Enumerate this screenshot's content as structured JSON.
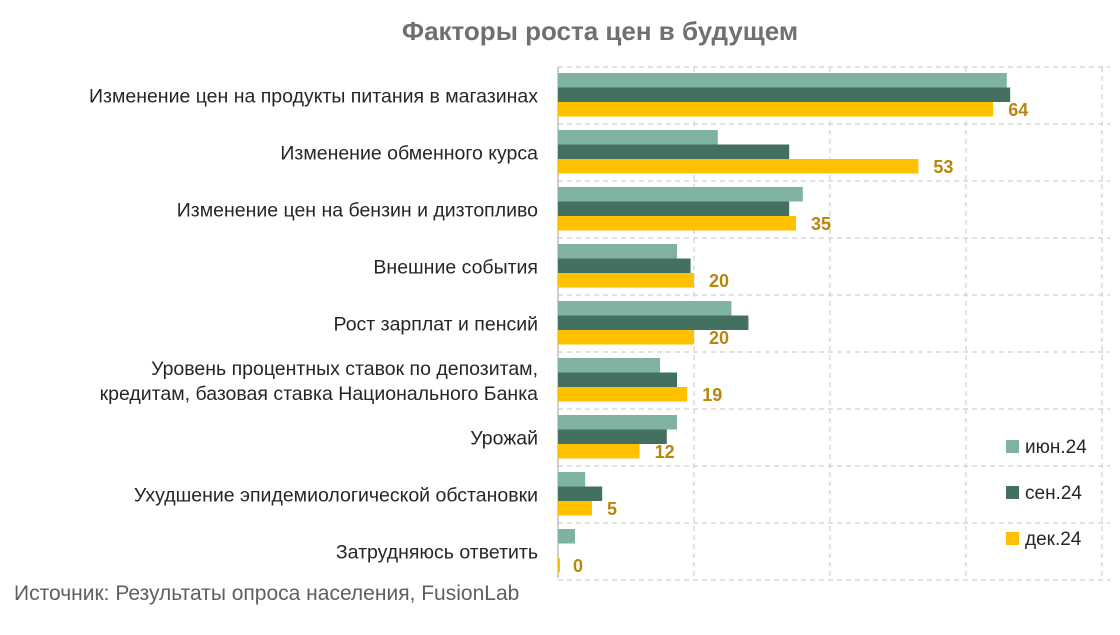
{
  "chart_data": {
    "type": "bar",
    "orientation": "horizontal",
    "title": "Факторы роста цен в будущем",
    "categories": [
      [
        "Изменение цен на продукты питания в магазинах"
      ],
      [
        "Изменение обменного курса"
      ],
      [
        "Изменение цен на бензин и дизтопливо"
      ],
      [
        "Внешние события"
      ],
      [
        "Рост зарплат и пенсий"
      ],
      [
        "Уровень процентных ставок по депозитам,",
        "кредитам, базовая ставка Национального Банка"
      ],
      [
        "Урожай"
      ],
      [
        "Ухудшение эпидемиологической обстановки"
      ],
      [
        "Затрудняюсь ответить"
      ]
    ],
    "series": [
      {
        "name": "июн.24",
        "color": "#7fb3a0",
        "values": [
          66,
          23.5,
          36,
          17.5,
          25.5,
          15,
          17.5,
          4,
          2.5
        ]
      },
      {
        "name": "сен.24",
        "color": "#44705f",
        "values": [
          66.5,
          34,
          34,
          19.5,
          28,
          17.5,
          16,
          6.5,
          0
        ]
      },
      {
        "name": "дек.24",
        "color": "#ffc000",
        "values": [
          64,
          53,
          35,
          20,
          20,
          19,
          12,
          5,
          0
        ],
        "data_labels": [
          "64",
          "53",
          "35",
          "20",
          "20",
          "19",
          "12",
          "5",
          "0"
        ]
      }
    ],
    "xlim": [
      0,
      80
    ],
    "grid": true,
    "legend_position": "bottom-right",
    "label_color": "#b8860b"
  },
  "source_note": "Источник: Результаты опроса населения, FusionLab"
}
